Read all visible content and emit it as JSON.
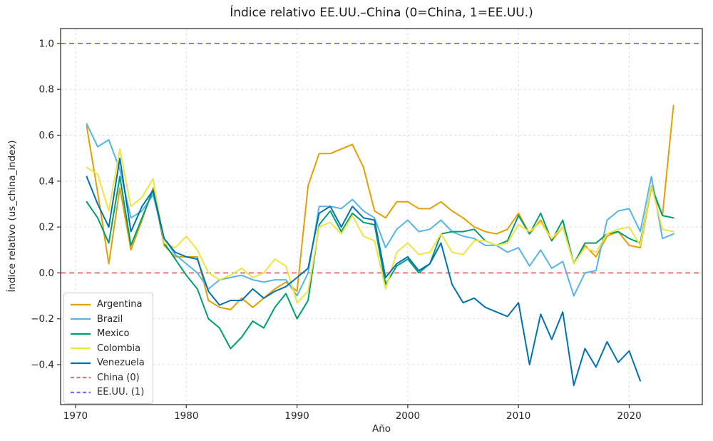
{
  "chart_data": {
    "type": "line",
    "title": "Índice relativo EE.UU.–China (0=China, 1=EE.UU.)",
    "xlabel": "Año",
    "ylabel": "Índice relativo (us_china_index)",
    "grid": true,
    "legend_position": "lower left",
    "xlim": [
      1968.65,
      2026.6
    ],
    "ylim": [
      -0.574,
      1.065
    ],
    "xticks": [
      1970,
      1980,
      1990,
      2000,
      2010,
      2020
    ],
    "yticks": [
      1.0,
      0.8,
      0.6,
      0.4,
      0.2,
      0.0,
      -0.2,
      -0.4
    ],
    "x": [
      1971,
      1972,
      1973,
      1974,
      1975,
      1976,
      1977,
      1978,
      1979,
      1980,
      1981,
      1982,
      1983,
      1984,
      1985,
      1986,
      1987,
      1988,
      1989,
      1990,
      1991,
      1992,
      1993,
      1994,
      1995,
      1996,
      1997,
      1998,
      1999,
      2000,
      2001,
      2002,
      2003,
      2004,
      2005,
      2006,
      2007,
      2008,
      2009,
      2010,
      2011,
      2012,
      2013,
      2014,
      2015,
      2016,
      2017,
      2018,
      2019,
      2020,
      2021,
      2022,
      2023,
      2024
    ],
    "series": [
      {
        "name": "Argentina",
        "color": "#E69F00",
        "values": [
          0.64,
          0.35,
          0.04,
          0.37,
          0.1,
          0.23,
          0.37,
          0.12,
          0.07,
          0.07,
          0.07,
          -0.12,
          -0.15,
          -0.16,
          -0.11,
          -0.15,
          -0.11,
          -0.07,
          -0.04,
          -0.08,
          0.38,
          0.52,
          0.52,
          0.54,
          0.56,
          0.46,
          0.27,
          0.24,
          0.31,
          0.31,
          0.28,
          0.28,
          0.31,
          0.27,
          0.24,
          0.2,
          0.18,
          0.17,
          0.19,
          0.26,
          0.17,
          0.23,
          0.14,
          0.2,
          0.04,
          0.12,
          0.07,
          0.16,
          0.18,
          0.12,
          0.11,
          0.37,
          0.25,
          0.73
        ]
      },
      {
        "name": "Brazil",
        "color": "#56B4E9",
        "values": [
          0.65,
          0.55,
          0.58,
          0.45,
          0.24,
          0.27,
          0.34,
          0.15,
          0.08,
          0.04,
          0.0,
          -0.07,
          -0.03,
          -0.02,
          -0.01,
          -0.03,
          -0.04,
          -0.03,
          -0.03,
          -0.1,
          0.0,
          0.29,
          0.29,
          0.28,
          0.32,
          0.27,
          0.24,
          0.11,
          0.19,
          0.23,
          0.18,
          0.19,
          0.23,
          0.18,
          0.16,
          0.15,
          0.12,
          0.12,
          0.09,
          0.11,
          0.03,
          0.1,
          0.02,
          0.05,
          -0.1,
          0.0,
          0.01,
          0.23,
          0.27,
          0.28,
          0.18,
          0.42,
          0.15,
          0.17
        ]
      },
      {
        "name": "Mexico",
        "color": "#009E73",
        "values": [
          0.31,
          0.24,
          0.13,
          0.42,
          0.12,
          0.24,
          0.36,
          0.13,
          0.06,
          -0.01,
          -0.07,
          -0.2,
          -0.24,
          -0.33,
          -0.28,
          -0.21,
          -0.24,
          -0.15,
          -0.09,
          -0.2,
          -0.12,
          0.21,
          0.27,
          0.18,
          0.26,
          0.22,
          0.21,
          -0.05,
          0.03,
          0.06,
          0.0,
          0.04,
          0.17,
          0.18,
          0.18,
          0.19,
          0.14,
          0.12,
          0.14,
          0.25,
          0.17,
          0.26,
          0.14,
          0.23,
          0.04,
          0.13,
          0.13,
          0.17,
          0.18,
          0.15,
          0.13,
          0.38,
          0.25,
          0.24
        ]
      },
      {
        "name": "Colombia",
        "color": "#F0E442",
        "values": [
          0.46,
          0.43,
          0.27,
          0.54,
          0.29,
          0.33,
          0.41,
          0.13,
          0.11,
          0.16,
          0.1,
          0.0,
          -0.03,
          -0.01,
          0.02,
          -0.02,
          0.0,
          0.06,
          0.03,
          -0.13,
          -0.08,
          0.2,
          0.22,
          0.17,
          0.25,
          0.16,
          0.14,
          -0.07,
          0.09,
          0.13,
          0.08,
          0.09,
          0.17,
          0.09,
          0.08,
          0.14,
          0.14,
          0.12,
          0.13,
          0.21,
          0.18,
          0.22,
          0.15,
          0.2,
          0.04,
          0.11,
          0.09,
          0.17,
          0.19,
          0.2,
          0.12,
          0.38,
          0.19,
          0.18
        ]
      },
      {
        "name": "Venezuela",
        "color": "#0072B2",
        "values": [
          0.42,
          0.3,
          0.2,
          0.5,
          0.18,
          0.29,
          0.36,
          0.15,
          0.09,
          0.07,
          0.06,
          -0.08,
          -0.14,
          -0.12,
          -0.12,
          -0.07,
          -0.11,
          -0.08,
          -0.06,
          -0.02,
          0.02,
          0.26,
          0.29,
          0.2,
          0.29,
          0.24,
          0.23,
          -0.02,
          0.04,
          0.07,
          0.01,
          0.04,
          0.13,
          -0.05,
          -0.13,
          -0.11,
          -0.15,
          -0.17,
          -0.19,
          -0.13,
          -0.4,
          -0.18,
          -0.29,
          -0.17,
          -0.49,
          -0.33,
          -0.41,
          -0.3,
          -0.39,
          -0.34,
          -0.47,
          null,
          null,
          null
        ]
      }
    ],
    "reference_lines": [
      {
        "name": "China (0)",
        "y": 0.0,
        "color": "#FB6B6B",
        "style": "dashed"
      },
      {
        "name": "EE.UU. (1)",
        "y": 1.0,
        "color": "#7070FB",
        "style": "dashed"
      }
    ]
  },
  "style_colors": {
    "grid": "#D9D9D9",
    "spine": "#333333",
    "text": "#262626"
  }
}
